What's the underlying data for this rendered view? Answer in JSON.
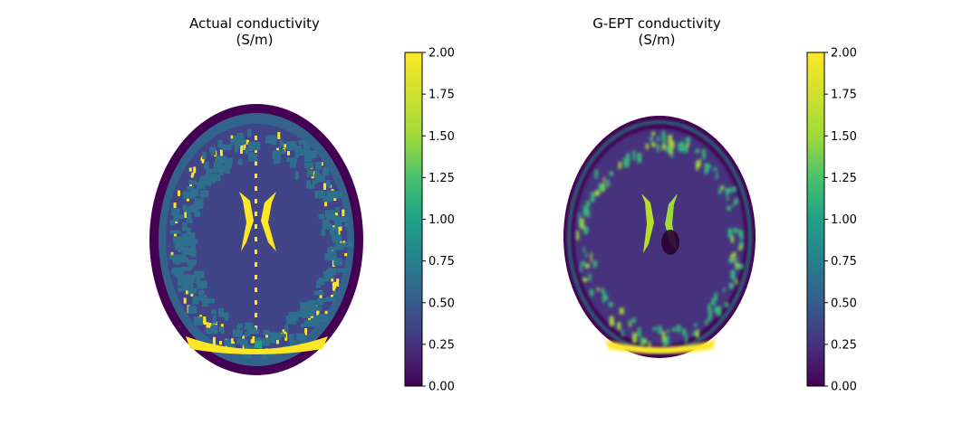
{
  "chart_data": [
    {
      "type": "heatmap",
      "title": "Actual conductivity",
      "subtitle": "(S/m)",
      "axes_visible": false,
      "colormap": "viridis",
      "colorbar": {
        "vmin": 0.0,
        "vmax": 2.0,
        "ticks": [
          "0.00",
          "0.25",
          "0.50",
          "0.75",
          "1.00",
          "1.25",
          "1.50",
          "1.75",
          "2.00"
        ],
        "tick_values": [
          0.0,
          0.25,
          0.5,
          0.75,
          1.0,
          1.25,
          1.5,
          1.75,
          2.0
        ]
      },
      "tissue_values": {
        "background_brain_tissue": 0.35,
        "scalp": 0.15,
        "skull_ring": 0.55,
        "cortex_grey_matter": 0.6,
        "csf_ventricles": 2.0
      }
    },
    {
      "type": "heatmap",
      "title": "G-EPT conductivity",
      "subtitle": "(S/m)",
      "axes_visible": false,
      "colormap": "viridis",
      "colorbar": {
        "vmin": 0.0,
        "vmax": 2.0,
        "ticks": [
          "0.00",
          "0.25",
          "0.50",
          "0.75",
          "1.00",
          "1.25",
          "1.50",
          "1.75",
          "2.00"
        ],
        "tick_values": [
          0.0,
          0.25,
          0.5,
          0.75,
          1.0,
          1.25,
          1.5,
          1.75,
          2.0
        ]
      },
      "tissue_values": {
        "brain_tissue": 0.3,
        "edge_enhancement": 0.9,
        "csf_ventricles": 1.7,
        "occipital_csf": 1.9
      }
    }
  ]
}
